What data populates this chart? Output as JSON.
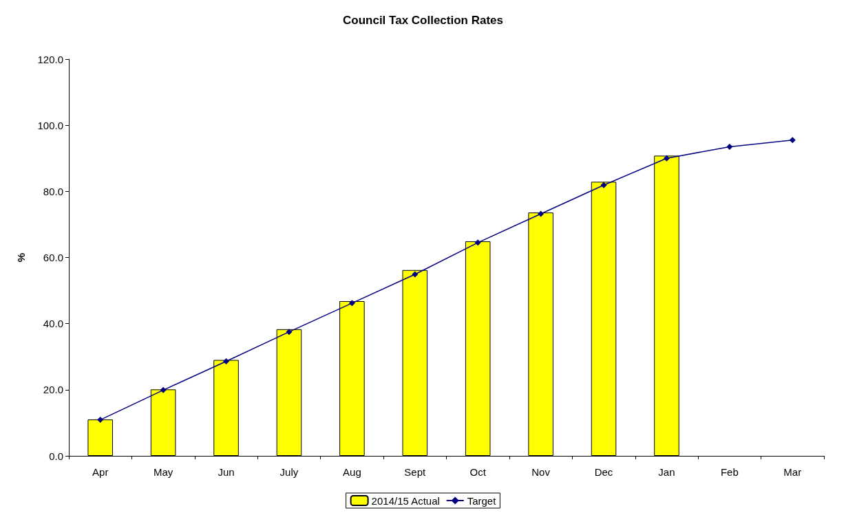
{
  "chart_data": {
    "type": "bar",
    "title": "Council Tax Collection Rates",
    "ylabel": "%",
    "categories": [
      "Apr",
      "May",
      "Jun",
      "July",
      "Aug",
      "Sept",
      "Oct",
      "Nov",
      "Dec",
      "Jan",
      "Feb",
      "Mar"
    ],
    "series": [
      {
        "name": "2014/15 Actual",
        "color": "#ffff00",
        "values": [
          11.0,
          20.1,
          29.0,
          38.3,
          46.8,
          56.2,
          64.9,
          73.6,
          82.9,
          90.8,
          null,
          null
        ]
      },
      {
        "name": "Target",
        "type": "line",
        "color": "#000080",
        "marker": "diamond",
        "values": [
          10.9,
          19.9,
          28.6,
          37.5,
          46.2,
          54.9,
          64.5,
          73.2,
          81.9,
          90.0,
          93.5,
          95.5
        ]
      }
    ],
    "ylim": [
      0,
      120
    ],
    "yticks": [
      {
        "value": 0,
        "label": "0.0"
      },
      {
        "value": 20,
        "label": "20.0"
      },
      {
        "value": 40,
        "label": "40.0"
      },
      {
        "value": 60,
        "label": "60.0"
      },
      {
        "value": 80,
        "label": "80.0"
      },
      {
        "value": 100,
        "label": "100.0"
      },
      {
        "value": 120,
        "label": "120.0"
      }
    ],
    "grid": false,
    "legend": "bottom"
  }
}
